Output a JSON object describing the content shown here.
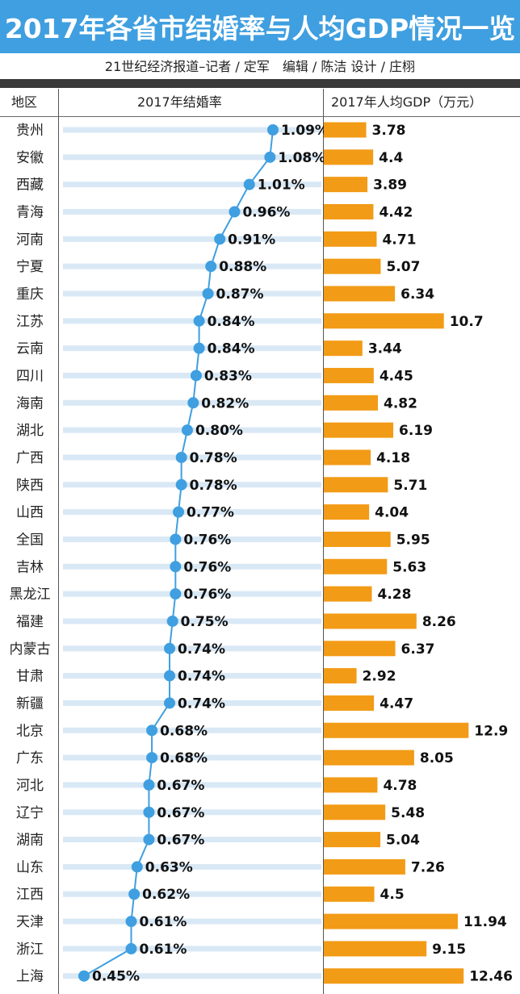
{
  "title": "2017年各省市结婚率与人均GDP情况一览",
  "credit": "21世纪经济报道–记者 / 定军　编辑 / 陈洁  设计 / 庄栩",
  "headers": {
    "region": "地区",
    "marriage": "2017年结婚率",
    "gdp": "2017年人均GDP（万元）"
  },
  "colors": {
    "title_bg": "#3f9fe0",
    "stripe": "#d9e8f5",
    "dot": "#3f9fe0",
    "line": "#3f9fe0",
    "bar": "#f29b16"
  },
  "chart_data": {
    "type": "table",
    "regions": [
      "贵州",
      "安徽",
      "西藏",
      "青海",
      "河南",
      "宁夏",
      "重庆",
      "江苏",
      "云南",
      "四川",
      "海南",
      "湖北",
      "广西",
      "陕西",
      "山西",
      "全国",
      "吉林",
      "黑龙江",
      "福建",
      "内蒙古",
      "甘肃",
      "新疆",
      "北京",
      "广东",
      "河北",
      "辽宁",
      "湖南",
      "山东",
      "江西",
      "天津",
      "浙江",
      "上海"
    ],
    "marriage_rate_labels": [
      "1.09%",
      "1.08%",
      "1.01%",
      "0.96%",
      "0.91%",
      "0.88%",
      "0.87%",
      "0.84%",
      "0.84%",
      "0.83%",
      "0.82%",
      "0.80%",
      "0.78%",
      "0.78%",
      "0.77%",
      "0.76%",
      "0.76%",
      "0.76%",
      "0.75%",
      "0.74%",
      "0.74%",
      "0.74%",
      "0.68%",
      "0.68%",
      "0.67%",
      "0.67%",
      "0.67%",
      "0.63%",
      "0.62%",
      "0.61%",
      "0.61%",
      "0.45%"
    ],
    "marriage_rate": [
      1.09,
      1.08,
      1.01,
      0.96,
      0.91,
      0.88,
      0.87,
      0.84,
      0.84,
      0.83,
      0.82,
      0.8,
      0.78,
      0.78,
      0.77,
      0.76,
      0.76,
      0.76,
      0.75,
      0.74,
      0.74,
      0.74,
      0.68,
      0.68,
      0.67,
      0.67,
      0.67,
      0.63,
      0.62,
      0.61,
      0.61,
      0.45
    ],
    "gdp_labels": [
      "3.78",
      "4.4",
      "3.89",
      "4.42",
      "4.71",
      "5.07",
      "6.34",
      "10.7",
      "3.44",
      "4.45",
      "4.82",
      "6.19",
      "4.18",
      "5.71",
      "4.04",
      "5.95",
      "5.63",
      "4.28",
      "8.26",
      "6.37",
      "2.92",
      "4.47",
      "12.9",
      "8.05",
      "4.78",
      "5.48",
      "5.04",
      "7.26",
      "4.5",
      "11.94",
      "9.15",
      "12.46"
    ],
    "gdp": [
      3.78,
      4.4,
      3.89,
      4.42,
      4.71,
      5.07,
      6.34,
      10.7,
      3.44,
      4.45,
      4.82,
      6.19,
      4.18,
      5.71,
      4.04,
      5.95,
      5.63,
      4.28,
      8.26,
      6.37,
      2.92,
      4.47,
      12.9,
      8.05,
      4.78,
      5.48,
      5.04,
      7.26,
      4.5,
      11.94,
      9.15,
      12.46
    ]
  }
}
